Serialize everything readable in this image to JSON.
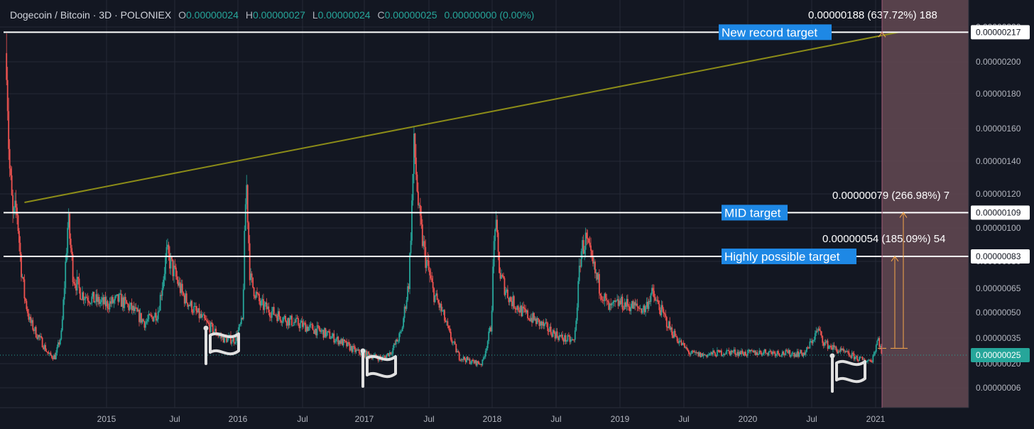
{
  "header": {
    "symbol": "Dogecoin / Bitcoin · 3D · POLONIEX",
    "o_label": "O",
    "o_value": "0.00000024",
    "h_label": "H",
    "h_value": "0.00000027",
    "l_label": "L",
    "l_value": "0.00000024",
    "c_label": "C",
    "c_value": "0.00000025",
    "change": "0.00000000 (0.00%)"
  },
  "colors": {
    "background": "#131722",
    "grid": "#262a37",
    "up": "#26a69a",
    "down": "#ef5350",
    "trendline": "#8c8c18",
    "target_line": "#ffffff",
    "label_bg": "#1e88e5",
    "projection_zone": "#5b434e",
    "measure": "#f7a74a"
  },
  "chart_data": {
    "type": "candlestick",
    "x_ticks": [
      "2015",
      "Jul",
      "2016",
      "Jul",
      "2017",
      "Jul",
      "2018",
      "Jul",
      "2019",
      "Jul",
      "2020",
      "Jul",
      "2021"
    ],
    "y_ticks": [
      "0.00000220",
      "0.00000200",
      "0.00000180",
      "0.00000160",
      "0.00000140",
      "0.00000120",
      "0.00000100",
      "0.00000080",
      "0.00000065",
      "0.00000050",
      "0.00000035",
      "0.00000020",
      "0.00000006"
    ],
    "price_profile": [
      [
        2014.22,
        2.05
      ],
      [
        2014.24,
        1.4
      ],
      [
        2014.27,
        1.05
      ],
      [
        2014.3,
        1.12
      ],
      [
        2014.33,
        0.8
      ],
      [
        2014.36,
        0.6
      ],
      [
        2014.4,
        0.45
      ],
      [
        2014.45,
        0.38
      ],
      [
        2014.5,
        0.32
      ],
      [
        2014.55,
        0.25
      ],
      [
        2014.6,
        0.24
      ],
      [
        2014.65,
        0.38
      ],
      [
        2014.7,
        1.05
      ],
      [
        2014.74,
        0.72
      ],
      [
        2014.8,
        0.62
      ],
      [
        2014.9,
        0.58
      ],
      [
        2015.0,
        0.55
      ],
      [
        2015.1,
        0.58
      ],
      [
        2015.2,
        0.52
      ],
      [
        2015.3,
        0.44
      ],
      [
        2015.4,
        0.5
      ],
      [
        2015.47,
        0.85
      ],
      [
        2015.52,
        0.75
      ],
      [
        2015.6,
        0.6
      ],
      [
        2015.7,
        0.5
      ],
      [
        2015.8,
        0.42
      ],
      [
        2015.9,
        0.35
      ],
      [
        2016.0,
        0.34
      ],
      [
        2016.06,
        0.45
      ],
      [
        2016.09,
        1.3
      ],
      [
        2016.12,
        0.7
      ],
      [
        2016.2,
        0.55
      ],
      [
        2016.3,
        0.5
      ],
      [
        2016.4,
        0.46
      ],
      [
        2016.55,
        0.42
      ],
      [
        2016.7,
        0.38
      ],
      [
        2016.85,
        0.32
      ],
      [
        2016.95,
        0.27
      ],
      [
        2017.05,
        0.25
      ],
      [
        2017.15,
        0.23
      ],
      [
        2017.22,
        0.27
      ],
      [
        2017.3,
        0.38
      ],
      [
        2017.36,
        0.7
      ],
      [
        2017.4,
        1.5
      ],
      [
        2017.44,
        1.05
      ],
      [
        2017.48,
        0.85
      ],
      [
        2017.55,
        0.62
      ],
      [
        2017.62,
        0.5
      ],
      [
        2017.68,
        0.36
      ],
      [
        2017.75,
        0.24
      ],
      [
        2017.85,
        0.21
      ],
      [
        2017.93,
        0.2
      ],
      [
        2018.0,
        0.42
      ],
      [
        2018.03,
        1.05
      ],
      [
        2018.07,
        0.72
      ],
      [
        2018.15,
        0.58
      ],
      [
        2018.25,
        0.5
      ],
      [
        2018.35,
        0.45
      ],
      [
        2018.45,
        0.4
      ],
      [
        2018.55,
        0.35
      ],
      [
        2018.65,
        0.33
      ],
      [
        2018.7,
        0.86
      ],
      [
        2018.74,
        0.93
      ],
      [
        2018.78,
        0.8
      ],
      [
        2018.85,
        0.65
      ],
      [
        2018.92,
        0.52
      ],
      [
        2019.0,
        0.56
      ],
      [
        2019.1,
        0.54
      ],
      [
        2019.2,
        0.52
      ],
      [
        2019.25,
        0.62
      ],
      [
        2019.3,
        0.55
      ],
      [
        2019.4,
        0.4
      ],
      [
        2019.48,
        0.32
      ],
      [
        2019.55,
        0.26
      ],
      [
        2019.65,
        0.25
      ],
      [
        2019.75,
        0.26
      ],
      [
        2019.85,
        0.27
      ],
      [
        2020.0,
        0.26
      ],
      [
        2020.15,
        0.27
      ],
      [
        2020.3,
        0.26
      ],
      [
        2020.45,
        0.26
      ],
      [
        2020.55,
        0.4
      ],
      [
        2020.6,
        0.32
      ],
      [
        2020.7,
        0.28
      ],
      [
        2020.8,
        0.25
      ],
      [
        2020.9,
        0.22
      ],
      [
        2020.97,
        0.22
      ],
      [
        2021.02,
        0.35
      ],
      [
        2021.05,
        0.25
      ]
    ],
    "current_price": "0.00000025",
    "horizontal_lines": [
      {
        "label": "New record target",
        "price_label": "0.00000217",
        "value": 2.17
      },
      {
        "label": "MID target",
        "price_label": "0.00000109",
        "value": 1.09
      },
      {
        "label": "Highly possible target",
        "price_label": "0.00000083",
        "value": 0.83
      }
    ],
    "trendline": {
      "from": [
        2014.36,
        1.15
      ],
      "to": [
        2021.18,
        2.17
      ]
    },
    "projection_zone": {
      "from": 2021.05,
      "to": 2021.8
    },
    "measurements": [
      {
        "text": "0.00000188 (637.72%) 188",
        "from": 0.29,
        "to": 2.17
      },
      {
        "text": "0.00000079 (266.98%) 7",
        "from": 0.29,
        "to": 1.09
      },
      {
        "text": "0.00000054 (185.09%) 54",
        "from": 0.29,
        "to": 0.83
      }
    ],
    "markers": [
      {
        "type": "flag",
        "at": [
          2015.78,
          0.33
        ]
      },
      {
        "type": "flag",
        "at": [
          2016.98,
          0.28
        ]
      },
      {
        "type": "flag",
        "at": [
          2020.85,
          0.25
        ]
      }
    ]
  }
}
